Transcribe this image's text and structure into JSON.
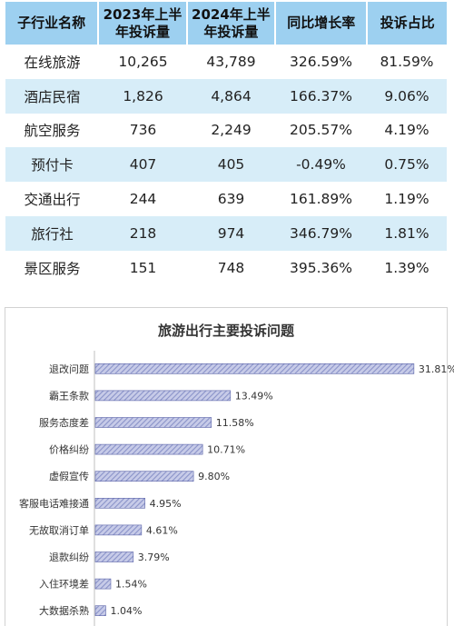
{
  "table": {
    "headers": [
      "子行业名称",
      "2023年上半年投诉量",
      "2024年上半年投诉量",
      "同比增长率",
      "投诉占比"
    ],
    "header_lines": [
      [
        "子行业名称"
      ],
      [
        "2023年上半",
        "年投诉量"
      ],
      [
        "2024年上半",
        "年投诉量"
      ],
      [
        "同比增长率"
      ],
      [
        "投诉占比"
      ]
    ],
    "rows": [
      [
        "在线旅游",
        "10,265",
        "43,789",
        "326.59%",
        "81.59%"
      ],
      [
        "酒店民宿",
        "1,826",
        "4,864",
        "166.37%",
        "9.06%"
      ],
      [
        "航空服务",
        "736",
        "2,249",
        "205.57%",
        "4.19%"
      ],
      [
        "预付卡",
        "407",
        "405",
        "-0.49%",
        "0.75%"
      ],
      [
        "交通出行",
        "244",
        "639",
        "161.89%",
        "1.19%"
      ],
      [
        "旅行社",
        "218",
        "974",
        "346.79%",
        "1.81%"
      ],
      [
        "景区服务",
        "151",
        "748",
        "395.36%",
        "1.39%"
      ]
    ],
    "colors": {
      "header_bg": "#9dd0f0",
      "alt_row_bg": "#d7edf8"
    }
  },
  "chart_data": {
    "type": "bar",
    "orientation": "horizontal",
    "title": "旅游出行主要投诉问题",
    "categories": [
      "退改问题",
      "霸王条款",
      "服务态度差",
      "价格纠纷",
      "虚假宣传",
      "客服电话难接通",
      "无故取消订单",
      "退款纠纷",
      "入住环境差",
      "大数据杀熟"
    ],
    "values": [
      31.81,
      13.49,
      11.58,
      10.71,
      9.8,
      4.95,
      4.61,
      3.79,
      1.54,
      1.04
    ],
    "value_labels": [
      "31.81%",
      "13.49%",
      "11.58%",
      "10.71%",
      "9.80%",
      "4.95%",
      "4.61%",
      "3.79%",
      "1.54%",
      "1.04%"
    ],
    "unit": "%",
    "xlim": [
      0,
      33
    ],
    "bar_color": "#8a93c9",
    "bar_stroke": "#5a63a8",
    "legend": false,
    "grid": false
  }
}
